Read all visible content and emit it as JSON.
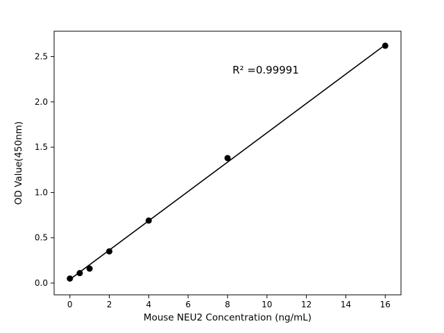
{
  "chart_data": {
    "type": "scatter",
    "title": "",
    "xlabel": "Mouse NEU2 Concentration (ng/mL)",
    "ylabel": "OD Value(450nm)",
    "annotation": "R² =0.99991",
    "x": [
      0,
      0.5,
      1,
      2,
      4,
      8,
      16
    ],
    "y": [
      0.05,
      0.11,
      0.16,
      0.35,
      0.69,
      1.38,
      2.62
    ],
    "trendline": {
      "x": [
        0,
        16
      ],
      "y": [
        0.04,
        2.63
      ]
    },
    "xticks": [
      0,
      2,
      4,
      6,
      8,
      10,
      12,
      14,
      16
    ],
    "yticks": [
      0,
      0.5,
      1,
      1.5,
      2,
      2.5
    ],
    "xlim": [
      -0.8,
      16.8
    ],
    "ylim": [
      -0.13,
      2.78
    ],
    "grid": false,
    "marker_color": "#000000",
    "line_color": "#000000",
    "background": "#ffffff"
  }
}
